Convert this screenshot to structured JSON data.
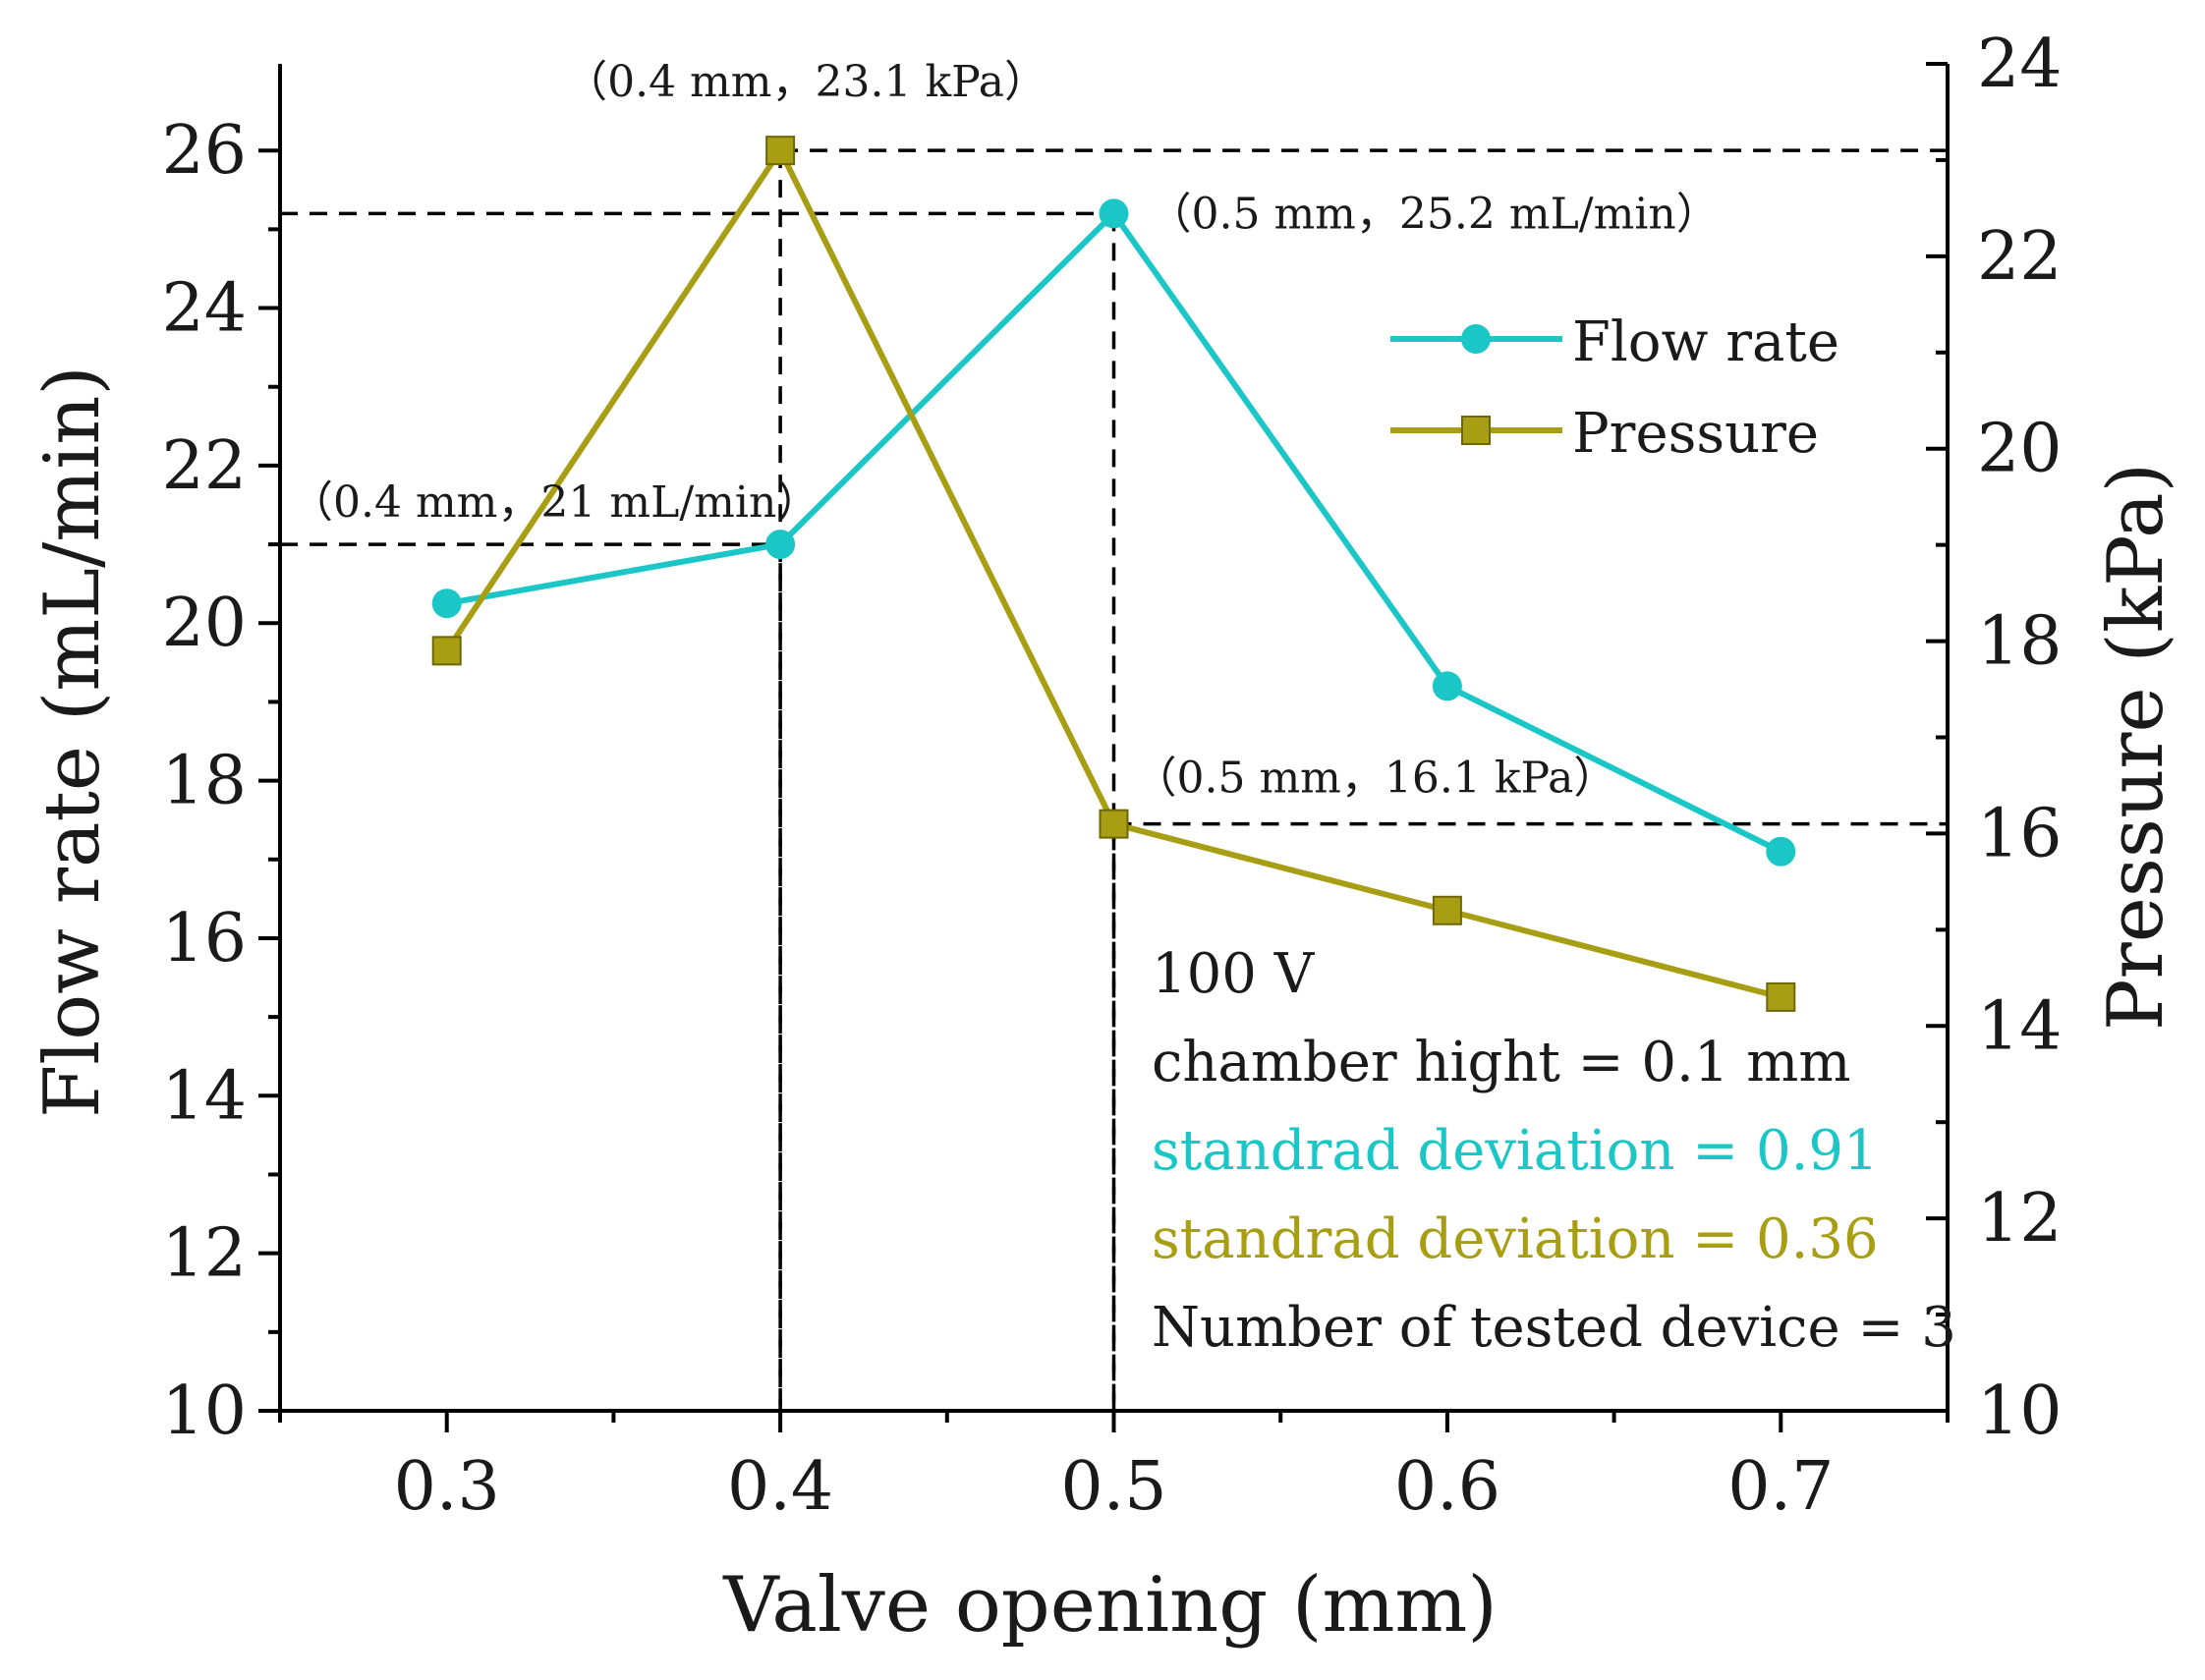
{
  "chart_data": {
    "type": "line",
    "x": [
      0.3,
      0.4,
      0.5,
      0.6,
      0.7
    ],
    "x_tick_labels": [
      "0.3",
      "0.4",
      "0.5",
      "0.6",
      "0.7"
    ],
    "xlabel": "Valve opening (mm)",
    "xlim": [
      0.25,
      0.75
    ],
    "ylabel_left": "Flow rate (mL/min)",
    "ylim_left": [
      10,
      27.1
    ],
    "y_left_ticks": [
      10,
      12,
      14,
      16,
      18,
      20,
      22,
      24,
      26
    ],
    "ylabel_right": "Pressure (kPa)",
    "ylim_right": [
      10,
      24
    ],
    "y_right_ticks": [
      10,
      12,
      14,
      16,
      18,
      20,
      22,
      24
    ],
    "series": [
      {
        "name": "Flow rate",
        "axis": "left",
        "marker": "circle",
        "color": "#1ac6c6",
        "values": [
          20.25,
          21.0,
          25.2,
          19.2,
          17.1
        ]
      },
      {
        "name": "Pressure",
        "axis": "right",
        "marker": "square",
        "color": "#a89e14",
        "values": [
          17.9,
          23.1,
          16.1,
          15.2,
          14.3
        ]
      }
    ],
    "legend_position": "top-right",
    "annotations": [
      {
        "text": "（0.4 mm，23.1 kPa）",
        "series": "Pressure",
        "x": 0.4,
        "y": 23.1
      },
      {
        "text": "（0.5 mm，25.2 mL/min）",
        "series": "Flow rate",
        "x": 0.5,
        "y": 25.2
      },
      {
        "text": "（0.4 mm，21 mL/min）",
        "series": "Flow rate",
        "x": 0.4,
        "y": 21.0
      },
      {
        "text": "（0.5 mm，16.1 kPa）",
        "series": "Pressure",
        "x": 0.5,
        "y": 16.1
      }
    ],
    "info_lines": [
      {
        "text": "100 V",
        "color": "#1a1a1a"
      },
      {
        "text": "chamber hight = 0.1 mm",
        "color": "#1a1a1a"
      },
      {
        "text": "standrad deviation = 0.91",
        "color": "#1ac6c6"
      },
      {
        "text": "standrad deviation = 0.36",
        "color": "#a89e14"
      },
      {
        "text": "Number of tested device = 3",
        "color": "#1a1a1a"
      }
    ]
  }
}
